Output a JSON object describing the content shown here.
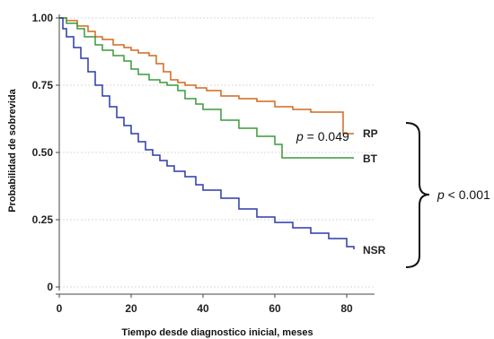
{
  "chart_data": {
    "type": "line",
    "step": true,
    "xlabel": "Tiempo desde diagnostico inicial, meses",
    "ylabel": "Probabilidad de sobrevida",
    "xlim": [
      0,
      84
    ],
    "ylim": [
      0,
      1.0
    ],
    "x_ticks": [
      "0",
      "20",
      "40",
      "60",
      "80"
    ],
    "y_ticks": [
      "0",
      "0.25",
      "0.50",
      "0.75",
      "1.00"
    ],
    "grid": "horizontal dotted",
    "series": [
      {
        "name": "RP",
        "color": "#d2691e",
        "x": [
          0,
          2,
          5,
          8,
          10,
          12,
          15,
          18,
          20,
          22,
          25,
          27,
          29,
          31,
          33,
          35,
          38,
          41,
          45,
          50,
          55,
          60,
          65,
          70,
          75,
          79,
          80,
          82
        ],
        "y": [
          1.0,
          0.99,
          0.97,
          0.95,
          0.93,
          0.92,
          0.9,
          0.89,
          0.88,
          0.87,
          0.86,
          0.83,
          0.8,
          0.77,
          0.76,
          0.75,
          0.74,
          0.73,
          0.71,
          0.7,
          0.69,
          0.67,
          0.66,
          0.65,
          0.65,
          0.57,
          0.57,
          0.57
        ]
      },
      {
        "name": "BT",
        "color": "#3a9a3a",
        "x": [
          0,
          2,
          5,
          7,
          10,
          12,
          15,
          18,
          20,
          22,
          25,
          28,
          30,
          33,
          35,
          38,
          40,
          45,
          50,
          55,
          60,
          62,
          65,
          70,
          75,
          80,
          82
        ],
        "y": [
          1.0,
          0.98,
          0.96,
          0.93,
          0.9,
          0.88,
          0.86,
          0.84,
          0.81,
          0.79,
          0.77,
          0.76,
          0.75,
          0.73,
          0.7,
          0.68,
          0.66,
          0.62,
          0.59,
          0.56,
          0.53,
          0.48,
          0.48,
          0.48,
          0.48,
          0.48,
          0.48
        ]
      },
      {
        "name": "NSR",
        "color": "#2b3aa8",
        "x": [
          0,
          1,
          2,
          4,
          6,
          8,
          10,
          12,
          14,
          16,
          18,
          20,
          22,
          24,
          26,
          28,
          30,
          32,
          35,
          38,
          40,
          45,
          50,
          55,
          60,
          65,
          70,
          75,
          80,
          82
        ],
        "y": [
          1.0,
          0.96,
          0.93,
          0.89,
          0.85,
          0.8,
          0.75,
          0.71,
          0.67,
          0.63,
          0.6,
          0.57,
          0.54,
          0.51,
          0.49,
          0.47,
          0.45,
          0.43,
          0.41,
          0.38,
          0.36,
          0.33,
          0.29,
          0.26,
          0.24,
          0.22,
          0.2,
          0.18,
          0.15,
          0.14
        ]
      }
    ],
    "annotations": {
      "p_rp_bt": "p = 0.049",
      "p_all": "p < 0.001"
    }
  }
}
